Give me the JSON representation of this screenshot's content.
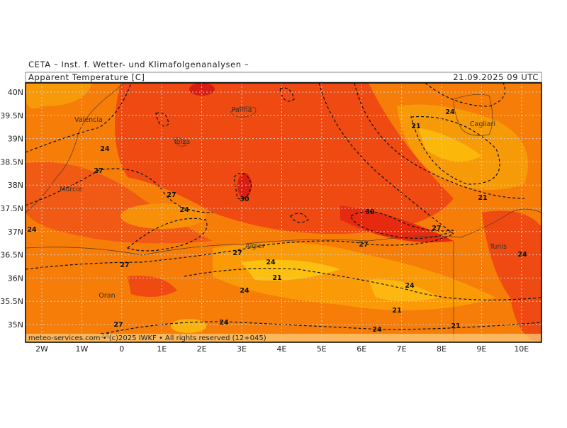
{
  "header": {
    "institute": "CETA – Inst. f. Wetter- und Klimafolgenanalysen –",
    "title": "Apparent Temperature [C]",
    "date": "21.09.2025 09 UTC"
  },
  "footer": "meteo-services.com • (c)2025 IWKF • All rights reserved (12+045)",
  "lat_labels": [
    "40N",
    "39.5N",
    "39N",
    "38.5N",
    "38N",
    "37.5N",
    "37N",
    "36.5N",
    "36N",
    "35.5N",
    "35N"
  ],
  "lon_labels": [
    "2W",
    "1W",
    "0",
    "1E",
    "2E",
    "3E",
    "4E",
    "5E",
    "6E",
    "7E",
    "8E",
    "9E",
    "10E"
  ],
  "cities": [
    "Valencia",
    "Murcia",
    "Ibiza",
    "Palma",
    "Algier",
    "Oran",
    "Cagliari",
    "Tunis"
  ],
  "contour_labels": [
    24,
    27,
    27,
    24,
    30,
    24,
    27,
    27,
    24,
    21,
    24,
    24,
    27,
    24,
    30,
    27,
    27,
    24,
    21,
    24,
    21,
    24,
    21,
    21,
    24
  ]
}
